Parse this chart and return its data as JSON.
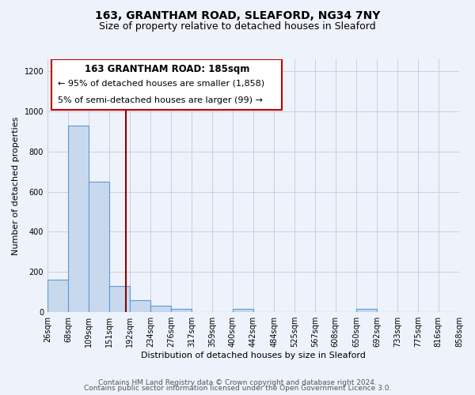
{
  "title": "163, GRANTHAM ROAD, SLEAFORD, NG34 7NY",
  "subtitle": "Size of property relative to detached houses in Sleaford",
  "xlabel": "Distribution of detached houses by size in Sleaford",
  "ylabel": "Number of detached properties",
  "bar_edges": [
    26,
    68,
    109,
    151,
    192,
    234,
    276,
    317,
    359,
    400,
    442,
    484,
    525,
    567,
    608,
    650,
    692,
    733,
    775,
    816,
    858
  ],
  "bar_heights": [
    160,
    930,
    650,
    130,
    60,
    30,
    15,
    0,
    0,
    15,
    0,
    0,
    0,
    0,
    0,
    15,
    0,
    0,
    0,
    0
  ],
  "bar_color": "#c8d9ee",
  "bar_edge_color": "#5b9bd5",
  "vline_x": 185,
  "vline_color": "#8b0000",
  "annotation_box_edge": "#c00000",
  "annotation_title": "163 GRANTHAM ROAD: 185sqm",
  "annotation_line1": "← 95% of detached houses are smaller (1,858)",
  "annotation_line2": "5% of semi-detached houses are larger (99) →",
  "ylim": [
    0,
    1260
  ],
  "yticks": [
    0,
    200,
    400,
    600,
    800,
    1000,
    1200
  ],
  "tick_labels": [
    "26sqm",
    "68sqm",
    "109sqm",
    "151sqm",
    "192sqm",
    "234sqm",
    "276sqm",
    "317sqm",
    "359sqm",
    "400sqm",
    "442sqm",
    "484sqm",
    "525sqm",
    "567sqm",
    "608sqm",
    "650sqm",
    "692sqm",
    "733sqm",
    "775sqm",
    "816sqm",
    "858sqm"
  ],
  "footer_line1": "Contains HM Land Registry data © Crown copyright and database right 2024.",
  "footer_line2": "Contains public sector information licensed under the Open Government Licence 3.0.",
  "background_color": "#eef2fa",
  "plot_bg_color": "#eef2fa",
  "grid_color": "#c8cfe0",
  "title_fontsize": 10,
  "subtitle_fontsize": 9,
  "axis_label_fontsize": 8,
  "tick_fontsize": 7,
  "footer_fontsize": 6.5
}
